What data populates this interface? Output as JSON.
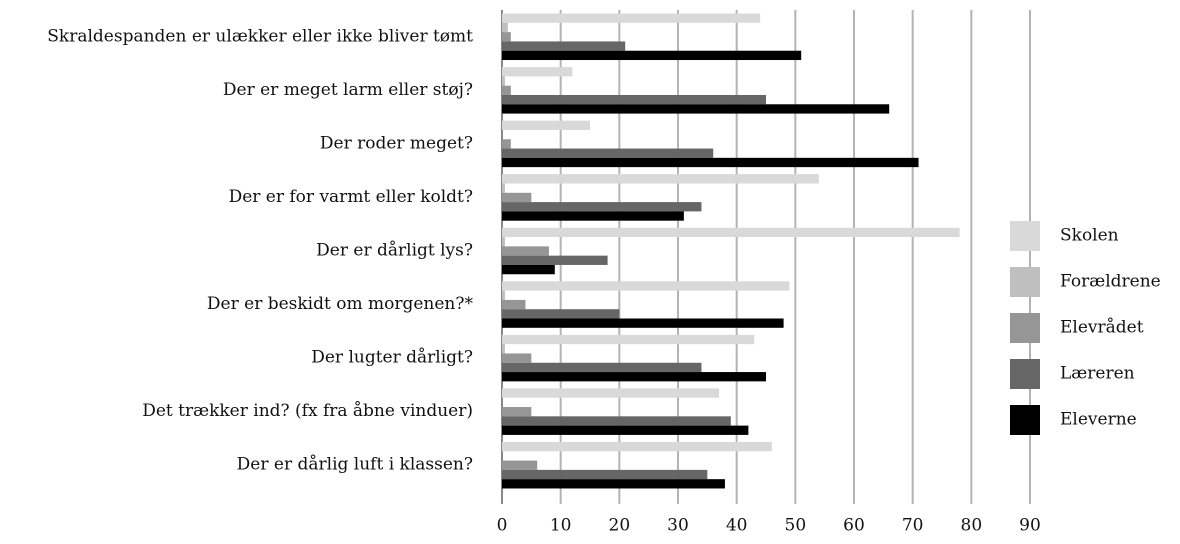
{
  "chart_data": {
    "type": "hbar",
    "categories": [
      "Skraldespanden er ulækker eller ikke bliver tømt",
      "Der er meget larm eller støj?",
      "Der roder meget?",
      "Der er for varmt eller koldt?",
      "Der er dårligt lys?",
      "Der er beskidt om morgenen?*",
      "Der lugter dårligt?",
      "Det trækker ind? (fx fra åbne vinduer)",
      "Der er dårlig luft i klassen?"
    ],
    "series": [
      {
        "name": "Skolen",
        "color": "#d9d9d9",
        "values": [
          44,
          12,
          15,
          54,
          78,
          49,
          43,
          37,
          46
        ]
      },
      {
        "name": "Forældrene",
        "color": "#bfbfbf",
        "values": [
          1,
          0.5,
          0,
          0.5,
          0.5,
          0.5,
          0.5,
          0,
          0
        ]
      },
      {
        "name": "Elevrådet",
        "color": "#969696",
        "values": [
          1.5,
          1.5,
          1.5,
          5,
          8,
          4,
          5,
          5,
          6
        ]
      },
      {
        "name": "Læreren",
        "color": "#666666",
        "values": [
          21,
          45,
          36,
          34,
          18,
          20,
          34,
          39,
          35
        ]
      },
      {
        "name": "Eleverne",
        "color": "#000000",
        "values": [
          51,
          66,
          71,
          31,
          9,
          48,
          45,
          42,
          38
        ]
      }
    ],
    "xlim": [
      0,
      90
    ],
    "xticks": [
      0,
      10,
      20,
      30,
      40,
      50,
      60,
      70,
      80,
      90
    ],
    "grid": true,
    "legend": "right"
  }
}
